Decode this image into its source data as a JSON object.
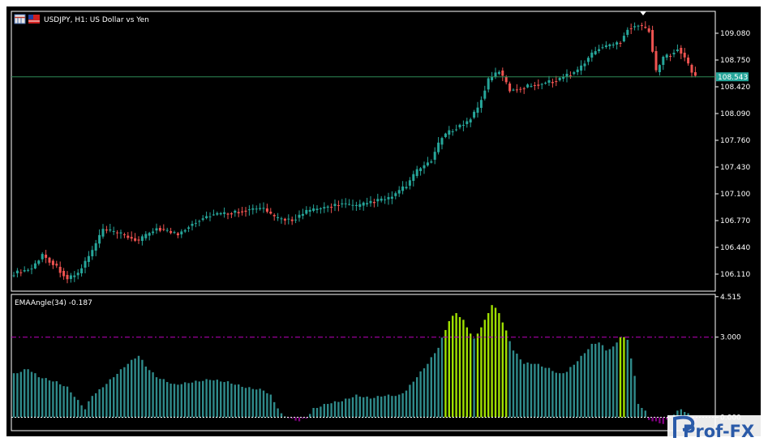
{
  "header": {
    "symbol_title": "USDJPY, H1:  US Dollar vs Yen",
    "indicator_title": "EMAAngle(34) -0.187"
  },
  "watermark": {
    "text": "Prof-FX"
  },
  "colors": {
    "background": "#000000",
    "axis": "#ffffff",
    "bull": "#26a69a",
    "bear": "#ef5350",
    "price_line": "#2e8b57",
    "price_badge": "#26a69a",
    "hist_normal": "#2f8a8a",
    "hist_strong": "#9fe000",
    "level_line": "#c000c0",
    "zero_line": "#ffffff"
  },
  "chart_data": [
    {
      "type": "candlestick",
      "title": "USDJPY, H1:  US Dollar vs Yen",
      "ylim": [
        105.9,
        109.35
      ],
      "y_ticks": [
        "109.080",
        "108.750",
        "108.420",
        "108.090",
        "107.760",
        "107.430",
        "107.100",
        "106.770",
        "106.440",
        "106.110"
      ],
      "last_price": "108.543",
      "anchors": [
        [
          0,
          106.12
        ],
        [
          5,
          106.18
        ],
        [
          8,
          106.35
        ],
        [
          12,
          106.2
        ],
        [
          15,
          106.05
        ],
        [
          18,
          106.12
        ],
        [
          22,
          106.4
        ],
        [
          25,
          106.66
        ],
        [
          30,
          106.6
        ],
        [
          35,
          106.52
        ],
        [
          40,
          106.68
        ],
        [
          46,
          106.6
        ],
        [
          50,
          106.74
        ],
        [
          55,
          106.84
        ],
        [
          60,
          106.86
        ],
        [
          65,
          106.9
        ],
        [
          70,
          106.92
        ],
        [
          73,
          106.8
        ],
        [
          78,
          106.78
        ],
        [
          82,
          106.88
        ],
        [
          88,
          106.94
        ],
        [
          92,
          106.98
        ],
        [
          96,
          106.94
        ],
        [
          100,
          107.0
        ],
        [
          105,
          107.04
        ],
        [
          110,
          107.2
        ],
        [
          113,
          107.38
        ],
        [
          117,
          107.52
        ],
        [
          120,
          107.8
        ],
        [
          124,
          107.92
        ],
        [
          127,
          107.98
        ],
        [
          130,
          108.16
        ],
        [
          133,
          108.5
        ],
        [
          136,
          108.62
        ],
        [
          139,
          108.38
        ],
        [
          142,
          108.4
        ],
        [
          145,
          108.44
        ],
        [
          148,
          108.46
        ],
        [
          152,
          108.5
        ],
        [
          155,
          108.56
        ],
        [
          158,
          108.62
        ],
        [
          161,
          108.78
        ],
        [
          164,
          108.9
        ],
        [
          168,
          108.94
        ],
        [
          170,
          108.98
        ],
        [
          172,
          109.14
        ],
        [
          175,
          109.18
        ],
        [
          178,
          109.12
        ],
        [
          180,
          108.6
        ],
        [
          182,
          108.78
        ],
        [
          184,
          108.82
        ],
        [
          186,
          108.9
        ],
        [
          188,
          108.78
        ],
        [
          190,
          108.6
        ],
        [
          191,
          108.54
        ]
      ]
    },
    {
      "type": "bar",
      "title": "EMAAngle(34) -0.187",
      "ylim": [
        -0.5,
        4.6
      ],
      "y_ticks": [
        "4.515",
        "3.000",
        "0.000"
      ],
      "level": 3.0,
      "zero": 0.0,
      "strong_threshold": 3.0,
      "anchors": [
        [
          0,
          1.6
        ],
        [
          4,
          1.8
        ],
        [
          7,
          1.5
        ],
        [
          12,
          1.3
        ],
        [
          15,
          1.1
        ],
        [
          18,
          0.6
        ],
        [
          20,
          0.3
        ],
        [
          22,
          0.8
        ],
        [
          24,
          1.0
        ],
        [
          28,
          1.5
        ],
        [
          32,
          2.0
        ],
        [
          35,
          2.3
        ],
        [
          37,
          1.9
        ],
        [
          40,
          1.5
        ],
        [
          45,
          1.2
        ],
        [
          50,
          1.3
        ],
        [
          55,
          1.4
        ],
        [
          60,
          1.3
        ],
        [
          65,
          1.1
        ],
        [
          70,
          1.0
        ],
        [
          72,
          0.8
        ],
        [
          75,
          0.1
        ],
        [
          78,
          -0.1
        ],
        [
          80,
          -0.15
        ],
        [
          82,
          -0.05
        ],
        [
          84,
          0.3
        ],
        [
          88,
          0.5
        ],
        [
          92,
          0.6
        ],
        [
          96,
          0.8
        ],
        [
          100,
          0.7
        ],
        [
          104,
          0.8
        ],
        [
          108,
          0.8
        ],
        [
          110,
          1.0
        ],
        [
          113,
          1.5
        ],
        [
          116,
          2.0
        ],
        [
          119,
          2.6
        ],
        [
          122,
          3.6
        ],
        [
          124,
          3.9
        ],
        [
          126,
          3.6
        ],
        [
          129,
          2.9
        ],
        [
          132,
          3.6
        ],
        [
          134,
          4.2
        ],
        [
          136,
          3.9
        ],
        [
          138,
          3.2
        ],
        [
          140,
          2.5
        ],
        [
          143,
          2.0
        ],
        [
          146,
          2.0
        ],
        [
          150,
          1.8
        ],
        [
          153,
          1.6
        ],
        [
          155,
          1.7
        ],
        [
          158,
          2.1
        ],
        [
          162,
          2.7
        ],
        [
          164,
          2.8
        ],
        [
          166,
          2.5
        ],
        [
          168,
          2.6
        ],
        [
          170,
          3.0
        ],
        [
          172,
          2.9
        ],
        [
          174,
          1.5
        ],
        [
          175,
          0.5
        ],
        [
          177,
          0.2
        ],
        [
          178,
          -0.1
        ],
        [
          180,
          -0.2
        ],
        [
          182,
          -0.25
        ],
        [
          185,
          0.1
        ],
        [
          187,
          0.3
        ],
        [
          189,
          0.1
        ],
        [
          191,
          -0.19
        ]
      ]
    }
  ]
}
